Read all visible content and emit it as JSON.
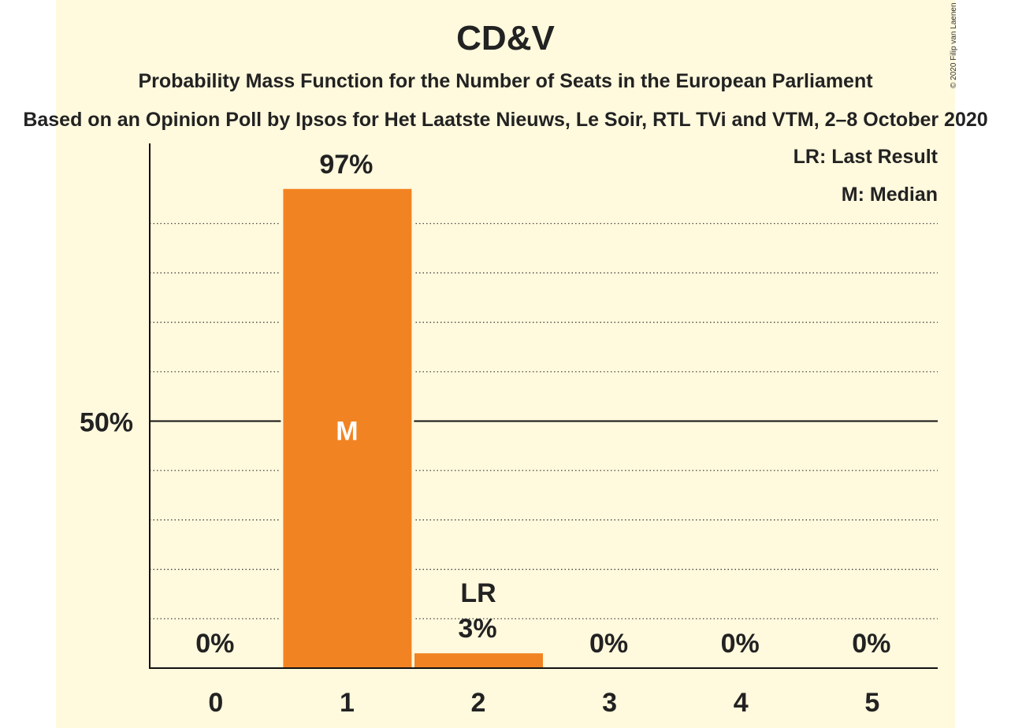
{
  "title": "CD&V",
  "subtitle": "Probability Mass Function for the Number of Seats in the European Parliament",
  "subtitle2": "Based on an Opinion Poll by Ipsos for Het Laatste Nieuws, Le Soir, RTL TVi and VTM, 2–8 October 2020",
  "copyright": "© 2020 Filip van Laenen",
  "legend": {
    "last_result": "LR: Last Result",
    "median": "M: Median"
  },
  "colors": {
    "bar": "#f28322",
    "background": "#fff9dd",
    "text": "#222222"
  },
  "chart_data": {
    "type": "bar",
    "categories": [
      "0",
      "1",
      "2",
      "3",
      "4",
      "5"
    ],
    "values": [
      0,
      97,
      3,
      0,
      0,
      0
    ],
    "value_labels": [
      "0%",
      "97%",
      "3%",
      "0%",
      "0%",
      "0%"
    ],
    "bar_annotations": [
      "",
      "M",
      "LR",
      "",
      "",
      ""
    ],
    "median_category": "1",
    "last_result_category": "2",
    "ylim": [
      0,
      100
    ],
    "y_tick_label": "50%",
    "y_tick_value": 50,
    "minor_gridlines": [
      10,
      20,
      30,
      40,
      60,
      70,
      80,
      90
    ],
    "grid": true,
    "legend_position": "top-right"
  }
}
